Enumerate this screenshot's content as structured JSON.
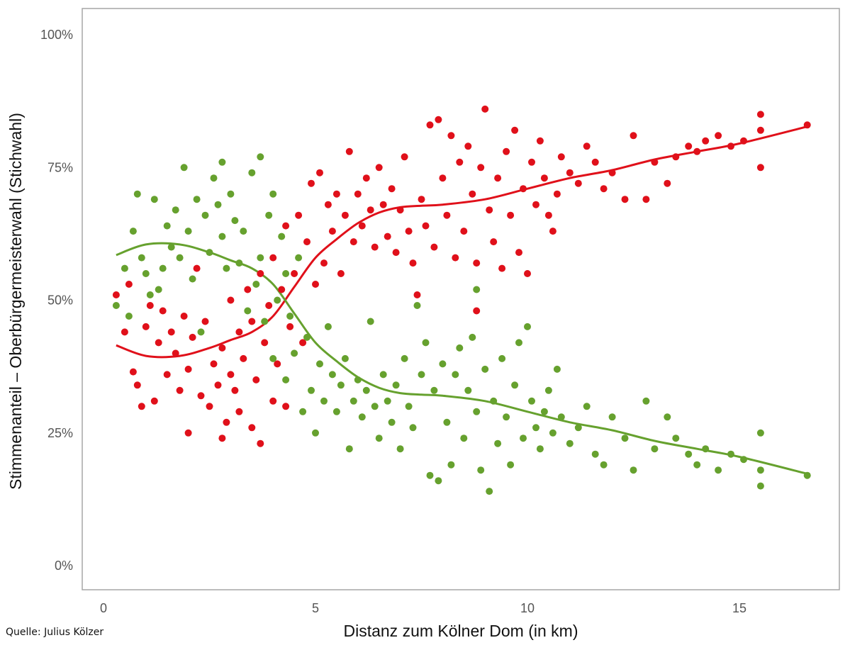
{
  "chart_data": {
    "type": "scatter",
    "title": "",
    "xlabel": "Distanz zum Kölner Dom (in km)",
    "ylabel": "Stimmenanteil – Oberbürgermeisterwahl (Stichwahl)",
    "xlim": [
      -0.5,
      17.1
    ],
    "ylim": [
      -0.05,
      1.05
    ],
    "x_ticks": [
      0,
      5,
      10,
      15
    ],
    "x_tick_labels": [
      "0",
      "5",
      "10",
      "15"
    ],
    "y_ticks": [
      0,
      0.25,
      0.5,
      0.75,
      1.0
    ],
    "y_tick_labels": [
      "0%",
      "25%",
      "50%",
      "75%",
      "100%"
    ],
    "grid": false,
    "legend": "none",
    "series": [
      {
        "color": "#e0101a",
        "smooth": [
          [
            0.3,
            0.415
          ],
          [
            1.0,
            0.395
          ],
          [
            1.8,
            0.395
          ],
          [
            2.5,
            0.41
          ],
          [
            3.0,
            0.425
          ],
          [
            3.5,
            0.44
          ],
          [
            4.0,
            0.47
          ],
          [
            4.5,
            0.525
          ],
          [
            5.0,
            0.58
          ],
          [
            5.5,
            0.615
          ],
          [
            6.0,
            0.645
          ],
          [
            6.5,
            0.665
          ],
          [
            7.0,
            0.675
          ],
          [
            7.5,
            0.678
          ],
          [
            8.0,
            0.68
          ],
          [
            9.0,
            0.69
          ],
          [
            10.0,
            0.71
          ],
          [
            11.0,
            0.73
          ],
          [
            12.0,
            0.745
          ],
          [
            13.0,
            0.765
          ],
          [
            14.0,
            0.78
          ],
          [
            15.0,
            0.795
          ],
          [
            16.6,
            0.827
          ]
        ],
        "points": [
          [
            0.3,
            0.51
          ],
          [
            0.5,
            0.44
          ],
          [
            0.6,
            0.53
          ],
          [
            0.7,
            0.365
          ],
          [
            0.8,
            0.34
          ],
          [
            0.9,
            0.3
          ],
          [
            1.0,
            0.45
          ],
          [
            1.1,
            0.49
          ],
          [
            1.2,
            0.31
          ],
          [
            1.3,
            0.42
          ],
          [
            1.4,
            0.48
          ],
          [
            1.5,
            0.36
          ],
          [
            1.6,
            0.44
          ],
          [
            1.7,
            0.4
          ],
          [
            1.8,
            0.33
          ],
          [
            1.9,
            0.47
          ],
          [
            2.0,
            0.25
          ],
          [
            2.0,
            0.37
          ],
          [
            2.1,
            0.43
          ],
          [
            2.2,
            0.56
          ],
          [
            2.3,
            0.32
          ],
          [
            2.4,
            0.46
          ],
          [
            2.5,
            0.3
          ],
          [
            2.6,
            0.38
          ],
          [
            2.7,
            0.34
          ],
          [
            2.8,
            0.24
          ],
          [
            2.8,
            0.41
          ],
          [
            2.9,
            0.27
          ],
          [
            3.0,
            0.36
          ],
          [
            3.0,
            0.5
          ],
          [
            3.1,
            0.33
          ],
          [
            3.2,
            0.44
          ],
          [
            3.2,
            0.29
          ],
          [
            3.3,
            0.39
          ],
          [
            3.4,
            0.52
          ],
          [
            3.5,
            0.26
          ],
          [
            3.5,
            0.46
          ],
          [
            3.6,
            0.35
          ],
          [
            3.7,
            0.23
          ],
          [
            3.7,
            0.55
          ],
          [
            3.8,
            0.42
          ],
          [
            3.9,
            0.49
          ],
          [
            4.0,
            0.31
          ],
          [
            4.0,
            0.58
          ],
          [
            4.1,
            0.38
          ],
          [
            4.2,
            0.52
          ],
          [
            4.3,
            0.3
          ],
          [
            4.3,
            0.64
          ],
          [
            4.4,
            0.45
          ],
          [
            4.5,
            0.55
          ],
          [
            4.6,
            0.66
          ],
          [
            4.7,
            0.42
          ],
          [
            4.8,
            0.61
          ],
          [
            4.9,
            0.72
          ],
          [
            5.0,
            0.53
          ],
          [
            5.1,
            0.74
          ],
          [
            5.2,
            0.57
          ],
          [
            5.3,
            0.68
          ],
          [
            5.4,
            0.63
          ],
          [
            5.5,
            0.7
          ],
          [
            5.6,
            0.55
          ],
          [
            5.7,
            0.66
          ],
          [
            5.8,
            0.78
          ],
          [
            5.9,
            0.61
          ],
          [
            6.0,
            0.7
          ],
          [
            6.1,
            0.64
          ],
          [
            6.2,
            0.73
          ],
          [
            6.3,
            0.67
          ],
          [
            6.4,
            0.6
          ],
          [
            6.5,
            0.75
          ],
          [
            6.6,
            0.68
          ],
          [
            6.7,
            0.62
          ],
          [
            6.8,
            0.71
          ],
          [
            6.9,
            0.59
          ],
          [
            7.0,
            0.67
          ],
          [
            7.1,
            0.77
          ],
          [
            7.2,
            0.63
          ],
          [
            7.3,
            0.57
          ],
          [
            7.4,
            0.51
          ],
          [
            7.5,
            0.69
          ],
          [
            7.6,
            0.64
          ],
          [
            7.7,
            0.83
          ],
          [
            7.8,
            0.6
          ],
          [
            7.9,
            0.84
          ],
          [
            8.0,
            0.73
          ],
          [
            8.1,
            0.66
          ],
          [
            8.2,
            0.81
          ],
          [
            8.3,
            0.58
          ],
          [
            8.4,
            0.76
          ],
          [
            8.5,
            0.63
          ],
          [
            8.6,
            0.79
          ],
          [
            8.7,
            0.7
          ],
          [
            8.8,
            0.48
          ],
          [
            8.8,
            0.57
          ],
          [
            8.9,
            0.75
          ],
          [
            9.0,
            0.86
          ],
          [
            9.1,
            0.67
          ],
          [
            9.2,
            0.61
          ],
          [
            9.3,
            0.73
          ],
          [
            9.4,
            0.56
          ],
          [
            9.5,
            0.78
          ],
          [
            9.6,
            0.66
          ],
          [
            9.7,
            0.82
          ],
          [
            9.8,
            0.59
          ],
          [
            9.9,
            0.71
          ],
          [
            10.0,
            0.55
          ],
          [
            10.1,
            0.76
          ],
          [
            10.2,
            0.68
          ],
          [
            10.3,
            0.8
          ],
          [
            10.4,
            0.73
          ],
          [
            10.5,
            0.66
          ],
          [
            10.6,
            0.63
          ],
          [
            10.7,
            0.7
          ],
          [
            10.8,
            0.77
          ],
          [
            11.0,
            0.74
          ],
          [
            11.2,
            0.72
          ],
          [
            11.4,
            0.79
          ],
          [
            11.6,
            0.76
          ],
          [
            11.8,
            0.71
          ],
          [
            12.0,
            0.74
          ],
          [
            12.3,
            0.69
          ],
          [
            12.5,
            0.81
          ],
          [
            12.8,
            0.69
          ],
          [
            13.0,
            0.76
          ],
          [
            13.3,
            0.72
          ],
          [
            13.5,
            0.77
          ],
          [
            13.8,
            0.79
          ],
          [
            14.0,
            0.78
          ],
          [
            14.2,
            0.8
          ],
          [
            14.5,
            0.81
          ],
          [
            14.8,
            0.79
          ],
          [
            15.1,
            0.8
          ],
          [
            15.5,
            0.85
          ],
          [
            15.5,
            0.75
          ],
          [
            15.5,
            0.82
          ],
          [
            16.6,
            0.83
          ]
        ]
      },
      {
        "color": "#66a12e",
        "smooth": [
          [
            0.3,
            0.585
          ],
          [
            1.0,
            0.605
          ],
          [
            1.8,
            0.605
          ],
          [
            2.5,
            0.59
          ],
          [
            3.0,
            0.575
          ],
          [
            3.5,
            0.56
          ],
          [
            4.0,
            0.53
          ],
          [
            4.5,
            0.475
          ],
          [
            5.0,
            0.42
          ],
          [
            5.5,
            0.385
          ],
          [
            6.0,
            0.355
          ],
          [
            6.5,
            0.335
          ],
          [
            7.0,
            0.325
          ],
          [
            7.5,
            0.322
          ],
          [
            8.0,
            0.32
          ],
          [
            9.0,
            0.31
          ],
          [
            10.0,
            0.29
          ],
          [
            11.0,
            0.27
          ],
          [
            12.0,
            0.255
          ],
          [
            13.0,
            0.235
          ],
          [
            14.0,
            0.22
          ],
          [
            15.0,
            0.205
          ],
          [
            16.6,
            0.173
          ]
        ],
        "points": [
          [
            0.3,
            0.49
          ],
          [
            0.5,
            0.56
          ],
          [
            0.6,
            0.47
          ],
          [
            0.7,
            0.63
          ],
          [
            0.8,
            0.7
          ],
          [
            0.9,
            0.58
          ],
          [
            1.0,
            0.55
          ],
          [
            1.1,
            0.51
          ],
          [
            1.2,
            0.69
          ],
          [
            1.3,
            0.52
          ],
          [
            1.4,
            0.56
          ],
          [
            1.5,
            0.64
          ],
          [
            1.6,
            0.6
          ],
          [
            1.7,
            0.67
          ],
          [
            1.8,
            0.58
          ],
          [
            1.9,
            0.75
          ],
          [
            2.0,
            0.63
          ],
          [
            2.1,
            0.54
          ],
          [
            2.2,
            0.69
          ],
          [
            2.3,
            0.44
          ],
          [
            2.4,
            0.66
          ],
          [
            2.5,
            0.59
          ],
          [
            2.6,
            0.73
          ],
          [
            2.7,
            0.68
          ],
          [
            2.8,
            0.76
          ],
          [
            2.8,
            0.62
          ],
          [
            2.9,
            0.56
          ],
          [
            3.0,
            0.7
          ],
          [
            3.1,
            0.65
          ],
          [
            3.2,
            0.57
          ],
          [
            3.3,
            0.63
          ],
          [
            3.4,
            0.48
          ],
          [
            3.5,
            0.74
          ],
          [
            3.6,
            0.53
          ],
          [
            3.7,
            0.77
          ],
          [
            3.7,
            0.58
          ],
          [
            3.8,
            0.46
          ],
          [
            3.9,
            0.66
          ],
          [
            4.0,
            0.39
          ],
          [
            4.0,
            0.7
          ],
          [
            4.1,
            0.5
          ],
          [
            4.2,
            0.62
          ],
          [
            4.3,
            0.35
          ],
          [
            4.3,
            0.55
          ],
          [
            4.4,
            0.47
          ],
          [
            4.5,
            0.4
          ],
          [
            4.6,
            0.58
          ],
          [
            4.7,
            0.29
          ],
          [
            4.8,
            0.43
          ],
          [
            4.9,
            0.33
          ],
          [
            5.0,
            0.25
          ],
          [
            5.1,
            0.38
          ],
          [
            5.2,
            0.31
          ],
          [
            5.3,
            0.45
          ],
          [
            5.4,
            0.36
          ],
          [
            5.5,
            0.29
          ],
          [
            5.6,
            0.34
          ],
          [
            5.7,
            0.39
          ],
          [
            5.8,
            0.22
          ],
          [
            5.9,
            0.31
          ],
          [
            6.0,
            0.35
          ],
          [
            6.1,
            0.28
          ],
          [
            6.2,
            0.33
          ],
          [
            6.3,
            0.46
          ],
          [
            6.4,
            0.3
          ],
          [
            6.5,
            0.24
          ],
          [
            6.6,
            0.36
          ],
          [
            6.7,
            0.31
          ],
          [
            6.8,
            0.27
          ],
          [
            6.9,
            0.34
          ],
          [
            7.0,
            0.22
          ],
          [
            7.1,
            0.39
          ],
          [
            7.2,
            0.3
          ],
          [
            7.3,
            0.26
          ],
          [
            7.4,
            0.49
          ],
          [
            7.5,
            0.36
          ],
          [
            7.6,
            0.42
          ],
          [
            7.7,
            0.17
          ],
          [
            7.8,
            0.33
          ],
          [
            7.9,
            0.16
          ],
          [
            8.0,
            0.38
          ],
          [
            8.1,
            0.27
          ],
          [
            8.2,
            0.19
          ],
          [
            8.3,
            0.36
          ],
          [
            8.4,
            0.41
          ],
          [
            8.5,
            0.24
          ],
          [
            8.6,
            0.33
          ],
          [
            8.7,
            0.43
          ],
          [
            8.8,
            0.52
          ],
          [
            8.8,
            0.29
          ],
          [
            8.9,
            0.18
          ],
          [
            9.0,
            0.37
          ],
          [
            9.1,
            0.14
          ],
          [
            9.2,
            0.31
          ],
          [
            9.3,
            0.23
          ],
          [
            9.4,
            0.39
          ],
          [
            9.5,
            0.28
          ],
          [
            9.6,
            0.19
          ],
          [
            9.7,
            0.34
          ],
          [
            9.8,
            0.42
          ],
          [
            9.9,
            0.24
          ],
          [
            10.0,
            0.45
          ],
          [
            10.1,
            0.31
          ],
          [
            10.2,
            0.26
          ],
          [
            10.3,
            0.22
          ],
          [
            10.4,
            0.29
          ],
          [
            10.5,
            0.33
          ],
          [
            10.6,
            0.25
          ],
          [
            10.7,
            0.37
          ],
          [
            10.8,
            0.28
          ],
          [
            11.0,
            0.23
          ],
          [
            11.2,
            0.26
          ],
          [
            11.4,
            0.3
          ],
          [
            11.6,
            0.21
          ],
          [
            11.8,
            0.19
          ],
          [
            12.0,
            0.28
          ],
          [
            12.3,
            0.24
          ],
          [
            12.5,
            0.18
          ],
          [
            12.8,
            0.31
          ],
          [
            13.0,
            0.22
          ],
          [
            13.3,
            0.28
          ],
          [
            13.5,
            0.24
          ],
          [
            13.8,
            0.21
          ],
          [
            14.0,
            0.19
          ],
          [
            14.2,
            0.22
          ],
          [
            14.5,
            0.18
          ],
          [
            14.8,
            0.21
          ],
          [
            15.1,
            0.2
          ],
          [
            15.5,
            0.25
          ],
          [
            15.5,
            0.15
          ],
          [
            15.5,
            0.18
          ],
          [
            16.6,
            0.17
          ]
        ]
      }
    ]
  },
  "source_text": "Quelle: Julius Kölzer"
}
